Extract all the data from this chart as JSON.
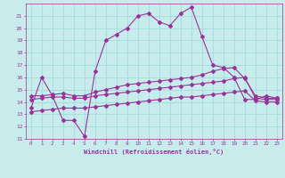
{
  "background_color": "#c8ecec",
  "grid_color": "#aadddd",
  "line_color": "#993399",
  "xlim": [
    -0.5,
    23.5
  ],
  "ylim": [
    11,
    22
  ],
  "xlabel": "Windchill (Refroidissement éolien,°C)",
  "yticks": [
    11,
    12,
    13,
    14,
    15,
    16,
    17,
    18,
    19,
    20,
    21
  ],
  "xticks": [
    0,
    1,
    2,
    3,
    4,
    5,
    6,
    7,
    8,
    9,
    10,
    11,
    12,
    13,
    14,
    15,
    16,
    17,
    18,
    19,
    20,
    21,
    22,
    23
  ],
  "series": [
    [
      13.5,
      16.0,
      14.5,
      12.5,
      12.5,
      11.2,
      16.5,
      19.0,
      19.5,
      20.0,
      21.0,
      21.2,
      20.5,
      20.2,
      21.2,
      21.7,
      19.3,
      17.0,
      16.8,
      16.0,
      14.2,
      14.2,
      14.5,
      14.3
    ],
    [
      14.5,
      14.5,
      14.6,
      14.7,
      14.5,
      14.5,
      14.8,
      15.0,
      15.2,
      15.4,
      15.5,
      15.6,
      15.7,
      15.8,
      15.9,
      16.0,
      16.2,
      16.5,
      16.7,
      16.8,
      15.9,
      14.5,
      14.3,
      14.3
    ],
    [
      14.2,
      14.3,
      14.4,
      14.4,
      14.3,
      14.3,
      14.5,
      14.6,
      14.7,
      14.8,
      14.9,
      15.0,
      15.1,
      15.2,
      15.3,
      15.4,
      15.5,
      15.6,
      15.7,
      15.9,
      16.0,
      14.3,
      14.2,
      14.2
    ],
    [
      13.2,
      13.3,
      13.4,
      13.5,
      13.5,
      13.5,
      13.6,
      13.7,
      13.8,
      13.9,
      14.0,
      14.1,
      14.2,
      14.3,
      14.4,
      14.4,
      14.5,
      14.6,
      14.7,
      14.8,
      14.9,
      14.1,
      14.0,
      14.0
    ]
  ]
}
